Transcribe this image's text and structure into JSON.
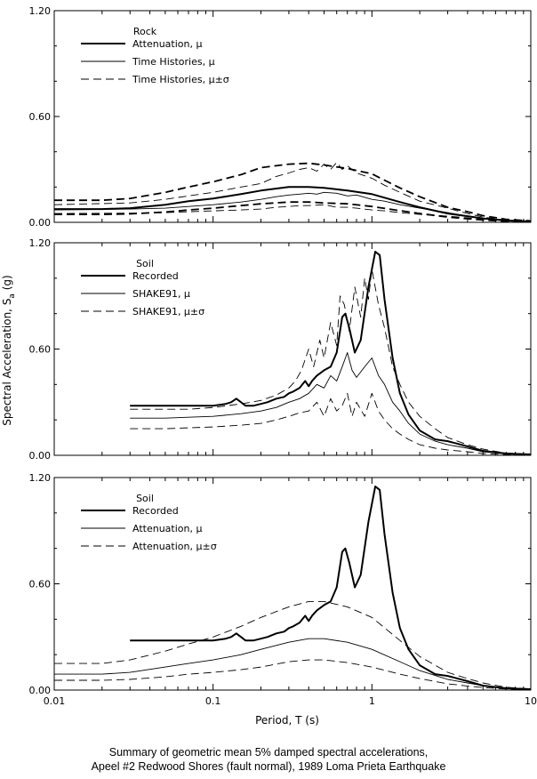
{
  "figure": {
    "ylabel": "Spectral Acceleration, S",
    "ylabel_sub": "a",
    "ylabel_unit": " (g)",
    "xlabel": "Period, T (s)",
    "caption_line1": "Summary of geometric mean 5% damped spectral accelerations,",
    "caption_line2": "Apeel #2 Redwood Shores (fault normal), 1989 Loma Prieta Earthquake"
  },
  "chart_data": [
    {
      "type": "line",
      "xscale": "log",
      "xlim": [
        0.01,
        10
      ],
      "ylim": [
        0,
        1.2
      ],
      "xticks": [
        0.01,
        0.1,
        1,
        10
      ],
      "xtick_labels": [
        "0.01",
        "0.1",
        "1",
        "10"
      ],
      "yticks": [
        0,
        0.6,
        1.2
      ],
      "ytick_labels": [
        "0.00",
        "0.60",
        "1.20"
      ],
      "show_xtick_labels": false,
      "legend_title": "Rock",
      "legend_position": "top-left",
      "series": [
        {
          "name": "Attenuation, μ",
          "style": "thick",
          "x": [
            0.01,
            0.02,
            0.03,
            0.05,
            0.07,
            0.1,
            0.15,
            0.2,
            0.3,
            0.4,
            0.5,
            0.7,
            1.0,
            1.5,
            2.0,
            3.0,
            4.0,
            5.0,
            7.0,
            10.0
          ],
          "y": [
            0.075,
            0.075,
            0.08,
            0.1,
            0.12,
            0.135,
            0.16,
            0.18,
            0.2,
            0.2,
            0.195,
            0.18,
            0.16,
            0.115,
            0.085,
            0.05,
            0.035,
            0.022,
            0.01,
            0.005
          ]
        },
        {
          "name": "Attenuation, μ±σ",
          "style": "thick-dashed",
          "legend": false,
          "x": [
            0.01,
            0.02,
            0.03,
            0.05,
            0.07,
            0.1,
            0.15,
            0.2,
            0.3,
            0.4,
            0.5,
            0.7,
            1.0,
            1.5,
            2.0,
            3.0,
            4.0,
            5.0,
            7.0,
            10.0
          ],
          "y": [
            0.125,
            0.125,
            0.135,
            0.17,
            0.2,
            0.23,
            0.27,
            0.31,
            0.33,
            0.335,
            0.325,
            0.305,
            0.275,
            0.195,
            0.145,
            0.085,
            0.06,
            0.038,
            0.017,
            0.008
          ]
        },
        {
          "name": "Attenuation, μ−σ",
          "style": "thick-dashed",
          "legend": false,
          "x": [
            0.01,
            0.02,
            0.03,
            0.05,
            0.07,
            0.1,
            0.15,
            0.2,
            0.3,
            0.4,
            0.5,
            0.7,
            1.0,
            1.5,
            2.0,
            3.0,
            4.0,
            5.0,
            7.0,
            10.0
          ],
          "y": [
            0.045,
            0.045,
            0.048,
            0.058,
            0.07,
            0.08,
            0.095,
            0.105,
            0.115,
            0.115,
            0.11,
            0.105,
            0.09,
            0.066,
            0.05,
            0.03,
            0.02,
            0.013,
            0.006,
            0.003
          ]
        },
        {
          "name": "Time Histories, μ",
          "style": "thin",
          "x": [
            0.01,
            0.03,
            0.05,
            0.07,
            0.1,
            0.15,
            0.2,
            0.25,
            0.3,
            0.35,
            0.4,
            0.45,
            0.5,
            0.6,
            0.7,
            0.8,
            1.0,
            1.2,
            1.5,
            2.0,
            3.0,
            4.0,
            5.0,
            7.0,
            10.0
          ],
          "y": [
            0.07,
            0.075,
            0.08,
            0.09,
            0.1,
            0.115,
            0.13,
            0.145,
            0.155,
            0.16,
            0.165,
            0.16,
            0.17,
            0.165,
            0.15,
            0.155,
            0.13,
            0.12,
            0.1,
            0.08,
            0.055,
            0.035,
            0.022,
            0.01,
            0.004
          ]
        },
        {
          "name": "Time Histories, μ±σ",
          "style": "thin-dashed",
          "x": [
            0.01,
            0.03,
            0.05,
            0.07,
            0.1,
            0.15,
            0.2,
            0.25,
            0.3,
            0.35,
            0.4,
            0.45,
            0.5,
            0.55,
            0.6,
            0.65,
            0.7,
            0.8,
            1.0,
            1.2,
            1.5,
            2.0,
            3.0,
            4.0,
            5.0,
            7.0,
            10.0
          ],
          "y": [
            0.1,
            0.11,
            0.13,
            0.15,
            0.17,
            0.2,
            0.22,
            0.26,
            0.28,
            0.3,
            0.31,
            0.29,
            0.33,
            0.3,
            0.34,
            0.3,
            0.32,
            0.28,
            0.25,
            0.21,
            0.17,
            0.12,
            0.08,
            0.05,
            0.03,
            0.013,
            0.005
          ]
        },
        {
          "name": "Time Histories, μ−σ",
          "style": "thin-dashed",
          "legend": false,
          "x": [
            0.01,
            0.03,
            0.05,
            0.07,
            0.1,
            0.15,
            0.2,
            0.25,
            0.3,
            0.35,
            0.4,
            0.5,
            0.6,
            0.7,
            0.8,
            1.0,
            1.2,
            1.5,
            2.0,
            3.0,
            4.0,
            5.0,
            7.0,
            10.0
          ],
          "y": [
            0.05,
            0.052,
            0.055,
            0.06,
            0.065,
            0.07,
            0.075,
            0.085,
            0.09,
            0.095,
            0.095,
            0.1,
            0.085,
            0.085,
            0.08,
            0.07,
            0.065,
            0.055,
            0.045,
            0.035,
            0.025,
            0.016,
            0.007,
            0.003
          ]
        }
      ]
    },
    {
      "type": "line",
      "xscale": "log",
      "xlim": [
        0.01,
        10
      ],
      "ylim": [
        0,
        1.2
      ],
      "xticks": [
        0.01,
        0.1,
        1,
        10
      ],
      "xtick_labels": [
        "0.01",
        "0.1",
        "1",
        "10"
      ],
      "yticks": [
        0,
        0.6,
        1.2
      ],
      "ytick_labels": [
        "0.00",
        "0.60",
        "1.20"
      ],
      "show_xtick_labels": false,
      "legend_title": "Soil",
      "legend_position": "top-left",
      "series": [
        {
          "name": "Recorded",
          "style": "thick",
          "x": [
            0.03,
            0.05,
            0.07,
            0.1,
            0.12,
            0.13,
            0.14,
            0.15,
            0.16,
            0.18,
            0.2,
            0.22,
            0.25,
            0.28,
            0.3,
            0.32,
            0.35,
            0.38,
            0.4,
            0.42,
            0.45,
            0.5,
            0.55,
            0.6,
            0.65,
            0.68,
            0.72,
            0.78,
            0.85,
            0.95,
            1.05,
            1.12,
            1.2,
            1.35,
            1.5,
            1.7,
            2.0,
            2.5,
            3.0,
            4.0,
            5.0,
            7.0,
            10.0
          ],
          "y": [
            0.28,
            0.28,
            0.28,
            0.28,
            0.29,
            0.3,
            0.32,
            0.3,
            0.28,
            0.28,
            0.29,
            0.3,
            0.32,
            0.33,
            0.35,
            0.36,
            0.38,
            0.42,
            0.39,
            0.42,
            0.45,
            0.48,
            0.5,
            0.58,
            0.78,
            0.8,
            0.72,
            0.58,
            0.65,
            0.95,
            1.15,
            1.13,
            0.88,
            0.55,
            0.35,
            0.23,
            0.14,
            0.09,
            0.08,
            0.05,
            0.025,
            0.01,
            0.005
          ]
        },
        {
          "name": "SHAKE91, μ",
          "style": "thin",
          "x": [
            0.03,
            0.05,
            0.07,
            0.1,
            0.15,
            0.2,
            0.25,
            0.3,
            0.35,
            0.4,
            0.45,
            0.5,
            0.55,
            0.6,
            0.65,
            0.7,
            0.75,
            0.8,
            0.9,
            1.0,
            1.1,
            1.2,
            1.35,
            1.5,
            1.7,
            2.0,
            2.5,
            3.0,
            4.0,
            5.0,
            7.0,
            10.0
          ],
          "y": [
            0.21,
            0.21,
            0.215,
            0.22,
            0.235,
            0.25,
            0.27,
            0.3,
            0.32,
            0.35,
            0.4,
            0.38,
            0.45,
            0.42,
            0.5,
            0.58,
            0.48,
            0.44,
            0.5,
            0.55,
            0.45,
            0.4,
            0.3,
            0.25,
            0.18,
            0.12,
            0.08,
            0.06,
            0.04,
            0.02,
            0.008,
            0.004
          ]
        },
        {
          "name": "SHAKE91, μ±σ",
          "style": "thin-dashed",
          "x": [
            0.03,
            0.05,
            0.07,
            0.1,
            0.15,
            0.2,
            0.25,
            0.3,
            0.33,
            0.36,
            0.4,
            0.43,
            0.47,
            0.5,
            0.55,
            0.6,
            0.63,
            0.67,
            0.72,
            0.78,
            0.85,
            0.9,
            0.95,
            1.0,
            1.1,
            1.2,
            1.35,
            1.5,
            1.7,
            2.0,
            2.5,
            3.0,
            4.0,
            5.0,
            7.0,
            10.0
          ],
          "y": [
            0.26,
            0.26,
            0.26,
            0.27,
            0.29,
            0.31,
            0.34,
            0.38,
            0.42,
            0.48,
            0.6,
            0.5,
            0.65,
            0.55,
            0.75,
            0.62,
            0.9,
            0.85,
            0.7,
            0.95,
            0.78,
            1.0,
            0.88,
            1.05,
            0.85,
            0.72,
            0.5,
            0.4,
            0.3,
            0.22,
            0.15,
            0.1,
            0.06,
            0.035,
            0.012,
            0.006
          ]
        },
        {
          "name": "SHAKE91, μ−σ",
          "style": "thin-dashed",
          "legend": false,
          "x": [
            0.03,
            0.05,
            0.07,
            0.1,
            0.15,
            0.2,
            0.25,
            0.3,
            0.35,
            0.4,
            0.45,
            0.5,
            0.55,
            0.6,
            0.65,
            0.7,
            0.75,
            0.8,
            0.9,
            1.0,
            1.1,
            1.2,
            1.35,
            1.5,
            1.7,
            2.0,
            2.5,
            3.0,
            4.0,
            5.0,
            7.0,
            10.0
          ],
          "y": [
            0.15,
            0.15,
            0.155,
            0.16,
            0.17,
            0.18,
            0.2,
            0.22,
            0.24,
            0.25,
            0.3,
            0.22,
            0.32,
            0.25,
            0.28,
            0.35,
            0.22,
            0.3,
            0.22,
            0.35,
            0.25,
            0.2,
            0.15,
            0.12,
            0.09,
            0.06,
            0.04,
            0.03,
            0.02,
            0.01,
            0.004,
            0.002
          ]
        }
      ]
    },
    {
      "type": "line",
      "xscale": "log",
      "xlim": [
        0.01,
        10
      ],
      "ylim": [
        0,
        1.2
      ],
      "xticks": [
        0.01,
        0.1,
        1,
        10
      ],
      "xtick_labels": [
        "0.01",
        "0.1",
        "1",
        "10"
      ],
      "yticks": [
        0,
        0.6,
        1.2
      ],
      "ytick_labels": [
        "0.00",
        "0.60",
        "1.20"
      ],
      "show_xtick_labels": true,
      "legend_title": "Soil",
      "legend_position": "top-left",
      "series": [
        {
          "name": "Recorded",
          "style": "thick",
          "x": [
            0.03,
            0.05,
            0.07,
            0.1,
            0.12,
            0.13,
            0.14,
            0.15,
            0.16,
            0.18,
            0.2,
            0.22,
            0.25,
            0.28,
            0.3,
            0.32,
            0.35,
            0.38,
            0.4,
            0.42,
            0.45,
            0.5,
            0.55,
            0.6,
            0.65,
            0.68,
            0.72,
            0.78,
            0.85,
            0.95,
            1.05,
            1.12,
            1.2,
            1.35,
            1.5,
            1.7,
            2.0,
            2.5,
            3.0,
            4.0,
            5.0,
            7.0,
            10.0
          ],
          "y": [
            0.28,
            0.28,
            0.28,
            0.28,
            0.29,
            0.3,
            0.32,
            0.3,
            0.28,
            0.28,
            0.29,
            0.3,
            0.32,
            0.33,
            0.35,
            0.36,
            0.38,
            0.42,
            0.39,
            0.42,
            0.45,
            0.48,
            0.5,
            0.58,
            0.78,
            0.8,
            0.72,
            0.58,
            0.65,
            0.95,
            1.15,
            1.13,
            0.88,
            0.55,
            0.35,
            0.23,
            0.14,
            0.09,
            0.08,
            0.05,
            0.025,
            0.01,
            0.005
          ]
        },
        {
          "name": "Attenuation, μ",
          "style": "thin",
          "x": [
            0.01,
            0.02,
            0.03,
            0.05,
            0.07,
            0.1,
            0.15,
            0.2,
            0.3,
            0.4,
            0.5,
            0.7,
            1.0,
            1.5,
            2.0,
            3.0,
            4.0,
            5.0,
            7.0,
            10.0
          ],
          "y": [
            0.09,
            0.09,
            0.1,
            0.13,
            0.15,
            0.17,
            0.2,
            0.23,
            0.27,
            0.29,
            0.29,
            0.27,
            0.23,
            0.16,
            0.11,
            0.06,
            0.04,
            0.025,
            0.01,
            0.004
          ]
        },
        {
          "name": "Attenuation, μ±σ",
          "style": "thin-dashed",
          "x": [
            0.01,
            0.02,
            0.03,
            0.05,
            0.07,
            0.1,
            0.15,
            0.2,
            0.3,
            0.4,
            0.5,
            0.7,
            1.0,
            1.5,
            2.0,
            3.0,
            4.0,
            5.0,
            7.0,
            10.0
          ],
          "y": [
            0.15,
            0.15,
            0.17,
            0.22,
            0.26,
            0.3,
            0.36,
            0.41,
            0.47,
            0.5,
            0.5,
            0.47,
            0.41,
            0.28,
            0.19,
            0.1,
            0.065,
            0.04,
            0.016,
            0.006
          ]
        },
        {
          "name": "Attenuation, μ−σ",
          "style": "thin-dashed",
          "legend": false,
          "x": [
            0.01,
            0.02,
            0.03,
            0.05,
            0.07,
            0.1,
            0.15,
            0.2,
            0.3,
            0.4,
            0.5,
            0.7,
            1.0,
            1.5,
            2.0,
            3.0,
            4.0,
            5.0,
            7.0,
            10.0
          ],
          "y": [
            0.055,
            0.055,
            0.06,
            0.075,
            0.09,
            0.1,
            0.115,
            0.13,
            0.16,
            0.17,
            0.17,
            0.155,
            0.13,
            0.09,
            0.065,
            0.035,
            0.023,
            0.014,
            0.006,
            0.002
          ]
        }
      ]
    }
  ]
}
